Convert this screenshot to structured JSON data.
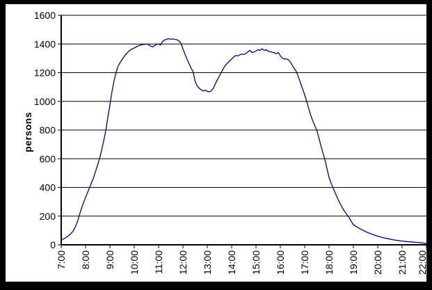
{
  "chart_data": {
    "type": "line",
    "title": "",
    "xlabel": "",
    "ylabel": "persons",
    "ylim": [
      0,
      1600
    ],
    "y_ticks": [
      0,
      200,
      400,
      600,
      800,
      1000,
      1200,
      1400,
      1600
    ],
    "x_ticks": [
      "7:00",
      "8:00",
      "9:00",
      "10:00",
      "11:00",
      "12:00",
      "13:00",
      "14:00",
      "15:00",
      "16:00",
      "17:00",
      "18:00",
      "19:00",
      "20:00",
      "21:00",
      "22:00"
    ],
    "grid": "horizontal",
    "legend": "none",
    "line_color": "#000080",
    "axis_color": "#000000",
    "background_color": "#ffffff",
    "frame_color": "#000000",
    "series": [
      {
        "name": "persons",
        "points": [
          [
            "7:00",
            34
          ],
          [
            "7:05",
            40
          ],
          [
            "7:10",
            48
          ],
          [
            "7:15",
            57
          ],
          [
            "7:20",
            68
          ],
          [
            "7:25",
            82
          ],
          [
            "7:30",
            98
          ],
          [
            "7:35",
            125
          ],
          [
            "7:40",
            160
          ],
          [
            "7:45",
            210
          ],
          [
            "7:50",
            255
          ],
          [
            "7:55",
            295
          ],
          [
            "8:00",
            330
          ],
          [
            "8:05",
            365
          ],
          [
            "8:10",
            400
          ],
          [
            "8:15",
            435
          ],
          [
            "8:20",
            470
          ],
          [
            "8:25",
            515
          ],
          [
            "8:30",
            560
          ],
          [
            "8:35",
            605
          ],
          [
            "8:40",
            665
          ],
          [
            "8:45",
            730
          ],
          [
            "8:50",
            800
          ],
          [
            "8:55",
            890
          ],
          [
            "9:00",
            975
          ],
          [
            "9:05",
            1065
          ],
          [
            "9:10",
            1140
          ],
          [
            "9:15",
            1200
          ],
          [
            "9:20",
            1245
          ],
          [
            "9:25",
            1270
          ],
          [
            "9:30",
            1292
          ],
          [
            "9:35",
            1312
          ],
          [
            "9:40",
            1330
          ],
          [
            "9:45",
            1345
          ],
          [
            "9:50",
            1358
          ],
          [
            "9:55",
            1366
          ],
          [
            "10:00",
            1372
          ],
          [
            "10:05",
            1380
          ],
          [
            "10:10",
            1387
          ],
          [
            "10:15",
            1392
          ],
          [
            "10:20",
            1396
          ],
          [
            "10:25",
            1398
          ],
          [
            "10:30",
            1400
          ],
          [
            "10:35",
            1396
          ],
          [
            "10:40",
            1386
          ],
          [
            "10:45",
            1380
          ],
          [
            "10:50",
            1388
          ],
          [
            "10:55",
            1398
          ],
          [
            "11:00",
            1400
          ],
          [
            "11:05",
            1393
          ],
          [
            "11:10",
            1418
          ],
          [
            "11:15",
            1428
          ],
          [
            "11:20",
            1433
          ],
          [
            "11:25",
            1436
          ],
          [
            "11:30",
            1433
          ],
          [
            "11:35",
            1435
          ],
          [
            "11:40",
            1432
          ],
          [
            "11:45",
            1430
          ],
          [
            "11:50",
            1421
          ],
          [
            "11:55",
            1407
          ],
          [
            "12:00",
            1365
          ],
          [
            "12:05",
            1330
          ],
          [
            "12:10",
            1295
          ],
          [
            "12:15",
            1262
          ],
          [
            "12:20",
            1232
          ],
          [
            "12:25",
            1205
          ],
          [
            "12:30",
            1140
          ],
          [
            "12:35",
            1108
          ],
          [
            "12:40",
            1092
          ],
          [
            "12:45",
            1080
          ],
          [
            "12:50",
            1072
          ],
          [
            "12:55",
            1078
          ],
          [
            "13:00",
            1070
          ],
          [
            "13:05",
            1066
          ],
          [
            "13:10",
            1074
          ],
          [
            "13:15",
            1092
          ],
          [
            "13:20",
            1124
          ],
          [
            "13:25",
            1152
          ],
          [
            "13:30",
            1178
          ],
          [
            "13:35",
            1205
          ],
          [
            "13:40",
            1230
          ],
          [
            "13:45",
            1252
          ],
          [
            "13:50",
            1268
          ],
          [
            "13:55",
            1282
          ],
          [
            "14:00",
            1295
          ],
          [
            "14:05",
            1310
          ],
          [
            "14:10",
            1320
          ],
          [
            "14:15",
            1317
          ],
          [
            "14:20",
            1324
          ],
          [
            "14:25",
            1330
          ],
          [
            "14:30",
            1327
          ],
          [
            "14:35",
            1333
          ],
          [
            "14:40",
            1345
          ],
          [
            "14:45",
            1356
          ],
          [
            "14:50",
            1340
          ],
          [
            "14:55",
            1344
          ],
          [
            "15:00",
            1352
          ],
          [
            "15:05",
            1360
          ],
          [
            "15:10",
            1355
          ],
          [
            "15:15",
            1367
          ],
          [
            "15:20",
            1355
          ],
          [
            "15:25",
            1361
          ],
          [
            "15:30",
            1350
          ],
          [
            "15:35",
            1346
          ],
          [
            "15:40",
            1342
          ],
          [
            "15:45",
            1338
          ],
          [
            "15:50",
            1333
          ],
          [
            "15:55",
            1340
          ],
          [
            "16:00",
            1318
          ],
          [
            "16:05",
            1302
          ],
          [
            "16:10",
            1296
          ],
          [
            "16:15",
            1295
          ],
          [
            "16:20",
            1290
          ],
          [
            "16:25",
            1272
          ],
          [
            "16:30",
            1248
          ],
          [
            "16:35",
            1226
          ],
          [
            "16:40",
            1205
          ],
          [
            "16:45",
            1165
          ],
          [
            "16:50",
            1125
          ],
          [
            "16:55",
            1085
          ],
          [
            "17:00",
            1045
          ],
          [
            "17:05",
            1000
          ],
          [
            "17:10",
            950
          ],
          [
            "17:15",
            903
          ],
          [
            "17:20",
            862
          ],
          [
            "17:25",
            830
          ],
          [
            "17:30",
            797
          ],
          [
            "17:35",
            745
          ],
          [
            "17:40",
            692
          ],
          [
            "17:45",
            640
          ],
          [
            "17:50",
            592
          ],
          [
            "17:55",
            530
          ],
          [
            "18:00",
            470
          ],
          [
            "18:05",
            430
          ],
          [
            "18:10",
            396
          ],
          [
            "18:15",
            362
          ],
          [
            "18:20",
            330
          ],
          [
            "18:25",
            300
          ],
          [
            "18:30",
            273
          ],
          [
            "18:35",
            248
          ],
          [
            "18:40",
            226
          ],
          [
            "18:45",
            206
          ],
          [
            "18:50",
            187
          ],
          [
            "18:55",
            162
          ],
          [
            "19:00",
            140
          ],
          [
            "19:10",
            122
          ],
          [
            "19:20",
            106
          ],
          [
            "19:30",
            92
          ],
          [
            "19:40",
            80
          ],
          [
            "19:50",
            70
          ],
          [
            "20:00",
            60
          ],
          [
            "20:10",
            52
          ],
          [
            "20:20",
            45
          ],
          [
            "20:30",
            40
          ],
          [
            "20:40",
            34
          ],
          [
            "20:50",
            30
          ],
          [
            "21:00",
            26
          ],
          [
            "21:10",
            23
          ],
          [
            "21:20",
            21
          ],
          [
            "21:30",
            18
          ],
          [
            "21:40",
            16
          ],
          [
            "21:50",
            13
          ],
          [
            "22:00",
            8
          ]
        ]
      }
    ]
  }
}
